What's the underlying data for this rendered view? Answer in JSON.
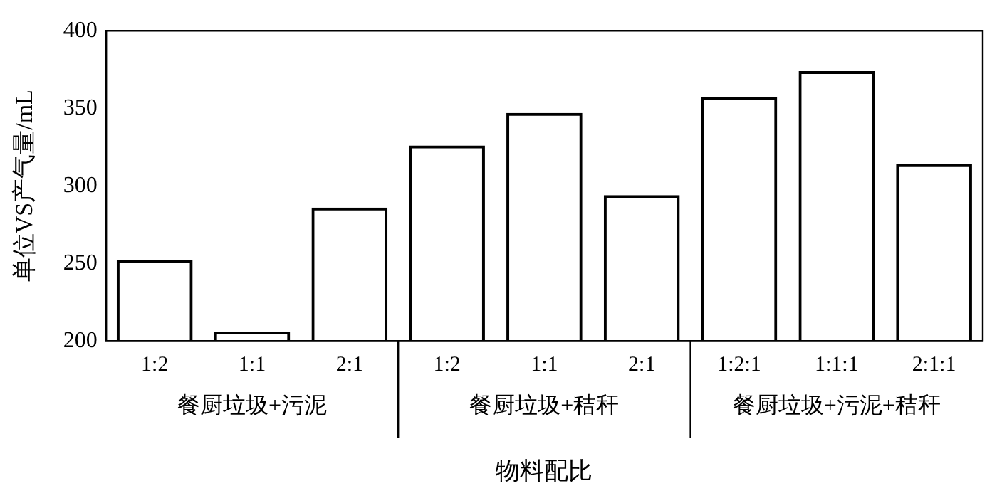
{
  "chart_data": {
    "type": "bar",
    "xlabel": "物料配比",
    "ylabel": "单位VS产气量/mL",
    "categories": [
      "1:2",
      "1:1",
      "2:1",
      "1:2",
      "1:1",
      "2:1",
      "1:2:1",
      "1:1:1",
      "2:1:1"
    ],
    "series": [
      {
        "color": "#000000",
        "values": [
          252,
          206,
          286,
          326,
          347,
          294,
          357,
          374,
          314
        ]
      }
    ],
    "ylim": [
      200,
      400
    ],
    "yticks": [
      200,
      250,
      300,
      350,
      400
    ],
    "grid": false,
    "legend": false,
    "annotations": [
      "餐厨垃圾+污泥",
      "餐厨垃圾+秸秆",
      "餐厨垃圾+污泥+秸秆"
    ]
  }
}
